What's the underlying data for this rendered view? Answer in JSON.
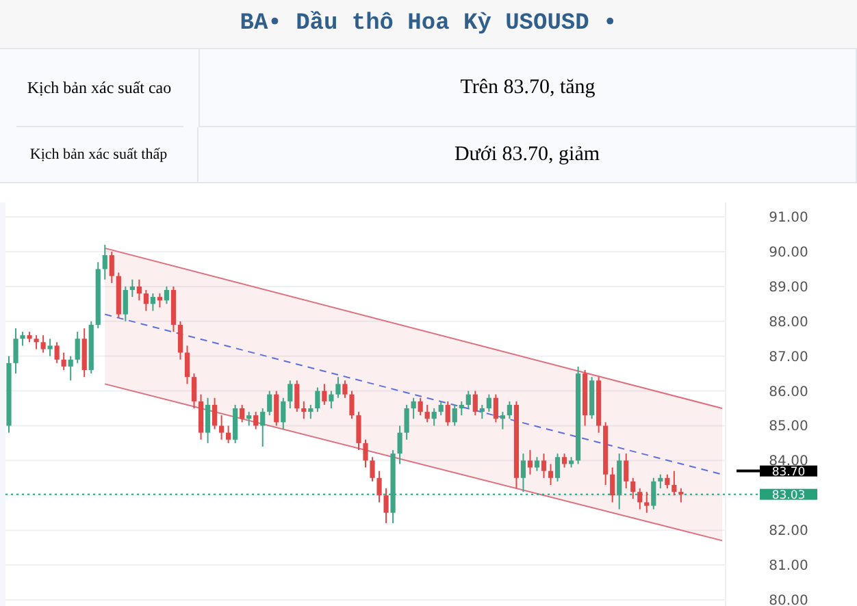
{
  "chart_data": {
    "type": "candlestick",
    "title": "BA• Dầu thô Hoa Kỳ USOUSD •",
    "annotations": [
      "Kịch bản xác suất cao",
      "Trên 83.70, tăng",
      "Kịch bản xác suất thấp",
      "Dưới 83.70, giảm"
    ],
    "categories": [
      null,
      null,
      null,
      null,
      null,
      null,
      null,
      null,
      null,
      null,
      null,
      null,
      null,
      null,
      null,
      null,
      null,
      null,
      null,
      null,
      null,
      null,
      null,
      null,
      null,
      null,
      null,
      null,
      null,
      null,
      null,
      null,
      null,
      null,
      null,
      null,
      null,
      null,
      null,
      null,
      null,
      null,
      null,
      null,
      null,
      null,
      null,
      null,
      null,
      null,
      null,
      null,
      null,
      null,
      null,
      null,
      null,
      null,
      null,
      null,
      null,
      null,
      null,
      null,
      null,
      null,
      null,
      null,
      null,
      null,
      null,
      null,
      null,
      null,
      null,
      null,
      null,
      null,
      null,
      null,
      null,
      null,
      null,
      null,
      null,
      null,
      null,
      null,
      null,
      null,
      null,
      null,
      null,
      null,
      null,
      null,
      null,
      null,
      null,
      null,
      null,
      null,
      null,
      null,
      null
    ],
    "ohlc": [
      [
        85.0,
        87.0,
        84.8,
        86.8
      ],
      [
        86.8,
        87.8,
        86.5,
        87.5
      ],
      [
        87.5,
        87.7,
        87.3,
        87.6
      ],
      [
        87.6,
        87.7,
        87.4,
        87.5
      ],
      [
        87.5,
        87.6,
        87.2,
        87.4
      ],
      [
        87.4,
        87.6,
        87.1,
        87.2
      ],
      [
        87.2,
        87.5,
        87.0,
        87.3
      ],
      [
        87.3,
        87.4,
        86.8,
        86.9
      ],
      [
        86.9,
        87.1,
        86.6,
        86.7
      ],
      [
        86.7,
        87.0,
        86.3,
        86.9
      ],
      [
        86.9,
        87.7,
        86.8,
        87.5
      ],
      [
        87.5,
        87.8,
        86.4,
        86.6
      ],
      [
        86.6,
        88.0,
        86.5,
        87.9
      ],
      [
        87.9,
        89.7,
        87.8,
        89.5
      ],
      [
        89.5,
        90.2,
        89.2,
        89.9
      ],
      [
        89.9,
        90.0,
        89.1,
        89.3
      ],
      [
        89.3,
        89.4,
        88.1,
        88.2
      ],
      [
        88.2,
        89.0,
        88.0,
        88.9
      ],
      [
        88.9,
        89.2,
        88.7,
        89.0
      ],
      [
        89.0,
        89.2,
        88.6,
        88.8
      ],
      [
        88.8,
        88.9,
        88.3,
        88.5
      ],
      [
        88.5,
        88.8,
        88.3,
        88.7
      ],
      [
        88.7,
        88.8,
        88.4,
        88.6
      ],
      [
        88.6,
        89.0,
        88.5,
        88.9
      ],
      [
        88.9,
        89.0,
        87.7,
        87.9
      ],
      [
        87.9,
        88.0,
        86.9,
        87.1
      ],
      [
        87.1,
        87.3,
        86.2,
        86.4
      ],
      [
        86.4,
        86.5,
        85.5,
        85.7
      ],
      [
        85.7,
        85.9,
        84.6,
        84.8
      ],
      [
        84.8,
        85.8,
        84.5,
        85.6
      ],
      [
        85.6,
        85.8,
        84.9,
        85.0
      ],
      [
        85.0,
        85.3,
        84.6,
        84.8
      ],
      [
        84.8,
        85.0,
        84.5,
        84.6
      ],
      [
        84.6,
        85.6,
        84.5,
        85.5
      ],
      [
        85.5,
        85.6,
        85.1,
        85.2
      ],
      [
        85.2,
        85.4,
        85.0,
        85.3
      ],
      [
        85.3,
        85.4,
        84.9,
        85.0
      ],
      [
        85.0,
        85.5,
        84.4,
        85.4
      ],
      [
        85.4,
        86.0,
        85.3,
        85.9
      ],
      [
        85.9,
        86.0,
        85.0,
        85.1
      ],
      [
        85.1,
        85.8,
        84.9,
        85.7
      ],
      [
        85.7,
        86.3,
        85.5,
        86.2
      ],
      [
        86.2,
        86.3,
        85.4,
        85.5
      ],
      [
        85.5,
        85.7,
        85.2,
        85.4
      ],
      [
        85.4,
        85.6,
        85.2,
        85.5
      ],
      [
        85.5,
        86.1,
        85.4,
        86.0
      ],
      [
        86.0,
        86.2,
        85.6,
        85.7
      ],
      [
        85.7,
        86.0,
        85.5,
        85.9
      ],
      [
        85.9,
        86.4,
        85.8,
        86.2
      ],
      [
        86.2,
        86.3,
        85.8,
        85.9
      ],
      [
        85.9,
        86.0,
        85.2,
        85.3
      ],
      [
        85.3,
        85.4,
        84.3,
        84.5
      ],
      [
        84.5,
        84.6,
        83.8,
        84.0
      ],
      [
        84.0,
        84.1,
        83.4,
        83.5
      ],
      [
        83.5,
        83.7,
        82.8,
        83.0
      ],
      [
        83.0,
        83.2,
        82.2,
        82.5
      ],
      [
        82.5,
        84.3,
        82.2,
        84.2
      ],
      [
        84.2,
        85.0,
        83.9,
        84.8
      ],
      [
        84.8,
        85.6,
        84.6,
        85.5
      ],
      [
        85.5,
        85.8,
        85.2,
        85.7
      ],
      [
        85.7,
        85.8,
        85.3,
        85.4
      ],
      [
        85.4,
        85.6,
        85.1,
        85.2
      ],
      [
        85.2,
        85.5,
        85.0,
        85.4
      ],
      [
        85.4,
        85.7,
        85.3,
        85.6
      ],
      [
        85.6,
        85.7,
        85.0,
        85.1
      ],
      [
        85.1,
        85.6,
        85.0,
        85.5
      ],
      [
        85.5,
        85.7,
        85.3,
        85.6
      ],
      [
        85.6,
        86.0,
        85.5,
        85.9
      ],
      [
        85.9,
        86.0,
        85.3,
        85.4
      ],
      [
        85.4,
        85.6,
        85.2,
        85.5
      ],
      [
        85.5,
        85.9,
        85.4,
        85.8
      ],
      [
        85.8,
        85.9,
        85.1,
        85.2
      ],
      [
        85.2,
        85.4,
        84.9,
        85.3
      ],
      [
        85.3,
        85.7,
        85.2,
        85.6
      ],
      [
        85.6,
        85.7,
        83.2,
        83.5
      ],
      [
        83.5,
        84.2,
        83.1,
        84.0
      ],
      [
        84.0,
        84.3,
        83.6,
        83.8
      ],
      [
        83.8,
        84.1,
        83.7,
        84.0
      ],
      [
        84.0,
        84.2,
        83.5,
        83.7
      ],
      [
        83.7,
        83.9,
        83.3,
        83.5
      ],
      [
        83.5,
        84.2,
        83.4,
        84.1
      ],
      [
        84.1,
        84.2,
        83.8,
        83.9
      ],
      [
        83.9,
        84.1,
        83.8,
        84.0
      ],
      [
        84.0,
        86.7,
        83.9,
        86.5
      ],
      [
        86.5,
        86.6,
        85.0,
        85.3
      ],
      [
        85.3,
        86.4,
        85.2,
        86.3
      ],
      [
        86.3,
        86.4,
        84.8,
        85.0
      ],
      [
        85.0,
        85.1,
        83.3,
        83.6
      ],
      [
        83.6,
        83.8,
        82.8,
        83.0
      ],
      [
        83.0,
        84.2,
        82.6,
        84.0
      ],
      [
        84.0,
        84.2,
        83.2,
        83.4
      ],
      [
        83.4,
        83.5,
        82.9,
        83.1
      ],
      [
        83.1,
        83.2,
        82.6,
        82.8
      ],
      [
        82.8,
        83.1,
        82.5,
        82.7
      ],
      [
        82.7,
        83.5,
        82.6,
        83.4
      ],
      [
        83.4,
        83.6,
        83.2,
        83.5
      ],
      [
        83.5,
        83.6,
        83.2,
        83.3
      ],
      [
        83.3,
        83.7,
        83.0,
        83.1
      ],
      [
        83.1,
        83.2,
        82.8,
        83.03
      ],
      null,
      null,
      null,
      null,
      null,
      null
    ],
    "series": [
      {
        "type": "line",
        "color": "#e07080",
        "line_style": "solid",
        "values": [
          null,
          null,
          null,
          null,
          null,
          null,
          null,
          null,
          null,
          null,
          null,
          null,
          null,
          null,
          90.1,
          null,
          null,
          null,
          null,
          null,
          null,
          null,
          null,
          null,
          null,
          null,
          null,
          null,
          null,
          null,
          null,
          null,
          null,
          null,
          null,
          null,
          null,
          null,
          null,
          null,
          null,
          null,
          null,
          null,
          null,
          null,
          null,
          null,
          null,
          null,
          null,
          null,
          null,
          null,
          null,
          null,
          null,
          null,
          null,
          null,
          null,
          null,
          null,
          null,
          null,
          null,
          null,
          null,
          null,
          null,
          null,
          null,
          null,
          null,
          null,
          null,
          null,
          null,
          null,
          null,
          null,
          null,
          null,
          null,
          null,
          null,
          null,
          null,
          null,
          null,
          null,
          null,
          null,
          null,
          null,
          null,
          null,
          null,
          null,
          null,
          null,
          null,
          null,
          null,
          85.5
        ]
      },
      {
        "type": "line",
        "color": "#e07080",
        "line_style": "solid",
        "values": [
          null,
          null,
          null,
          null,
          null,
          null,
          null,
          null,
          null,
          null,
          null,
          null,
          null,
          null,
          86.2,
          null,
          null,
          null,
          null,
          null,
          null,
          null,
          null,
          null,
          null,
          null,
          null,
          null,
          null,
          null,
          null,
          null,
          null,
          null,
          null,
          null,
          null,
          null,
          null,
          null,
          null,
          null,
          null,
          null,
          null,
          null,
          null,
          null,
          null,
          null,
          null,
          null,
          null,
          null,
          null,
          null,
          null,
          null,
          null,
          null,
          null,
          null,
          null,
          null,
          null,
          null,
          null,
          null,
          null,
          null,
          null,
          null,
          null,
          null,
          null,
          null,
          null,
          null,
          null,
          null,
          null,
          null,
          null,
          null,
          null,
          null,
          null,
          null,
          null,
          null,
          null,
          null,
          null,
          null,
          null,
          null,
          null,
          null,
          null,
          null,
          null,
          null,
          null,
          null,
          81.7
        ]
      },
      {
        "type": "line",
        "color": "#5b6fe0",
        "line_style": "dashed",
        "values": [
          null,
          null,
          null,
          null,
          null,
          null,
          null,
          null,
          null,
          null,
          null,
          null,
          null,
          null,
          88.2,
          null,
          null,
          null,
          null,
          null,
          null,
          null,
          null,
          null,
          null,
          null,
          null,
          null,
          null,
          null,
          null,
          null,
          null,
          null,
          null,
          null,
          null,
          null,
          null,
          null,
          null,
          null,
          null,
          null,
          null,
          null,
          null,
          null,
          null,
          null,
          null,
          null,
          null,
          null,
          null,
          null,
          null,
          null,
          null,
          null,
          null,
          null,
          null,
          null,
          null,
          null,
          null,
          null,
          null,
          null,
          null,
          null,
          null,
          null,
          null,
          null,
          null,
          null,
          null,
          null,
          null,
          null,
          null,
          null,
          null,
          null,
          null,
          null,
          null,
          null,
          null,
          null,
          null,
          null,
          null,
          null,
          null,
          null,
          null,
          null,
          null,
          null,
          null,
          null,
          83.6
        ],
        "upper": [
          null,
          null,
          null,
          null,
          null,
          null,
          null,
          null,
          null,
          null,
          null,
          null,
          null,
          null,
          90.1,
          null,
          null,
          null,
          null,
          null,
          null,
          null,
          null,
          null,
          null,
          null,
          null,
          null,
          null,
          null,
          null,
          null,
          null,
          null,
          null,
          null,
          null,
          null,
          null,
          null,
          null,
          null,
          null,
          null,
          null,
          null,
          null,
          null,
          null,
          null,
          null,
          null,
          null,
          null,
          null,
          null,
          null,
          null,
          null,
          null,
          null,
          null,
          null,
          null,
          null,
          null,
          null,
          null,
          null,
          null,
          null,
          null,
          null,
          null,
          null,
          null,
          null,
          null,
          null,
          null,
          null,
          null,
          null,
          null,
          null,
          null,
          null,
          null,
          null,
          null,
          null,
          null,
          null,
          null,
          null,
          null,
          null,
          null,
          null,
          null,
          null,
          null,
          null,
          null,
          85.5
        ],
        "lower": [
          null,
          null,
          null,
          null,
          null,
          null,
          null,
          null,
          null,
          null,
          null,
          null,
          null,
          null,
          86.2,
          null,
          null,
          null,
          null,
          null,
          null,
          null,
          null,
          null,
          null,
          null,
          null,
          null,
          null,
          null,
          null,
          null,
          null,
          null,
          null,
          null,
          null,
          null,
          null,
          null,
          null,
          null,
          null,
          null,
          null,
          null,
          null,
          null,
          null,
          null,
          null,
          null,
          null,
          null,
          null,
          null,
          null,
          null,
          null,
          null,
          null,
          null,
          null,
          null,
          null,
          null,
          null,
          null,
          null,
          null,
          null,
          null,
          null,
          null,
          null,
          null,
          null,
          null,
          null,
          null,
          null,
          null,
          null,
          null,
          null,
          null,
          null,
          null,
          null,
          null,
          null,
          null,
          null,
          null,
          null,
          null,
          null,
          null,
          null,
          null,
          null,
          null,
          null,
          null,
          81.7
        ]
      }
    ],
    "ref_lines": [
      {
        "axis": "y",
        "value": 83.7,
        "label": "83.70",
        "color": "#000000",
        "line_style": "solid"
      },
      {
        "axis": "y",
        "value": 83.03,
        "label": "83.03",
        "color": "#26a17b",
        "line_style": "dotted"
      }
    ],
    "ylim": [
      79.9,
      91.1
    ],
    "yticks": [
      {
        "value": 80,
        "label": "80.00"
      },
      {
        "value": 81,
        "label": "81.00"
      },
      {
        "value": 82,
        "label": "82.00"
      },
      {
        "value": 83,
        "label": null
      },
      {
        "value": 84,
        "label": "84.00"
      },
      {
        "value": 85,
        "label": "85.00"
      },
      {
        "value": 86,
        "label": "86.00"
      },
      {
        "value": 87,
        "label": "87.00"
      },
      {
        "value": 88,
        "label": "88.00"
      },
      {
        "value": 89,
        "label": "89.00"
      },
      {
        "value": 90,
        "label": "90.00"
      },
      {
        "value": 91,
        "label": "91.00"
      }
    ],
    "grid": "y"
  }
}
